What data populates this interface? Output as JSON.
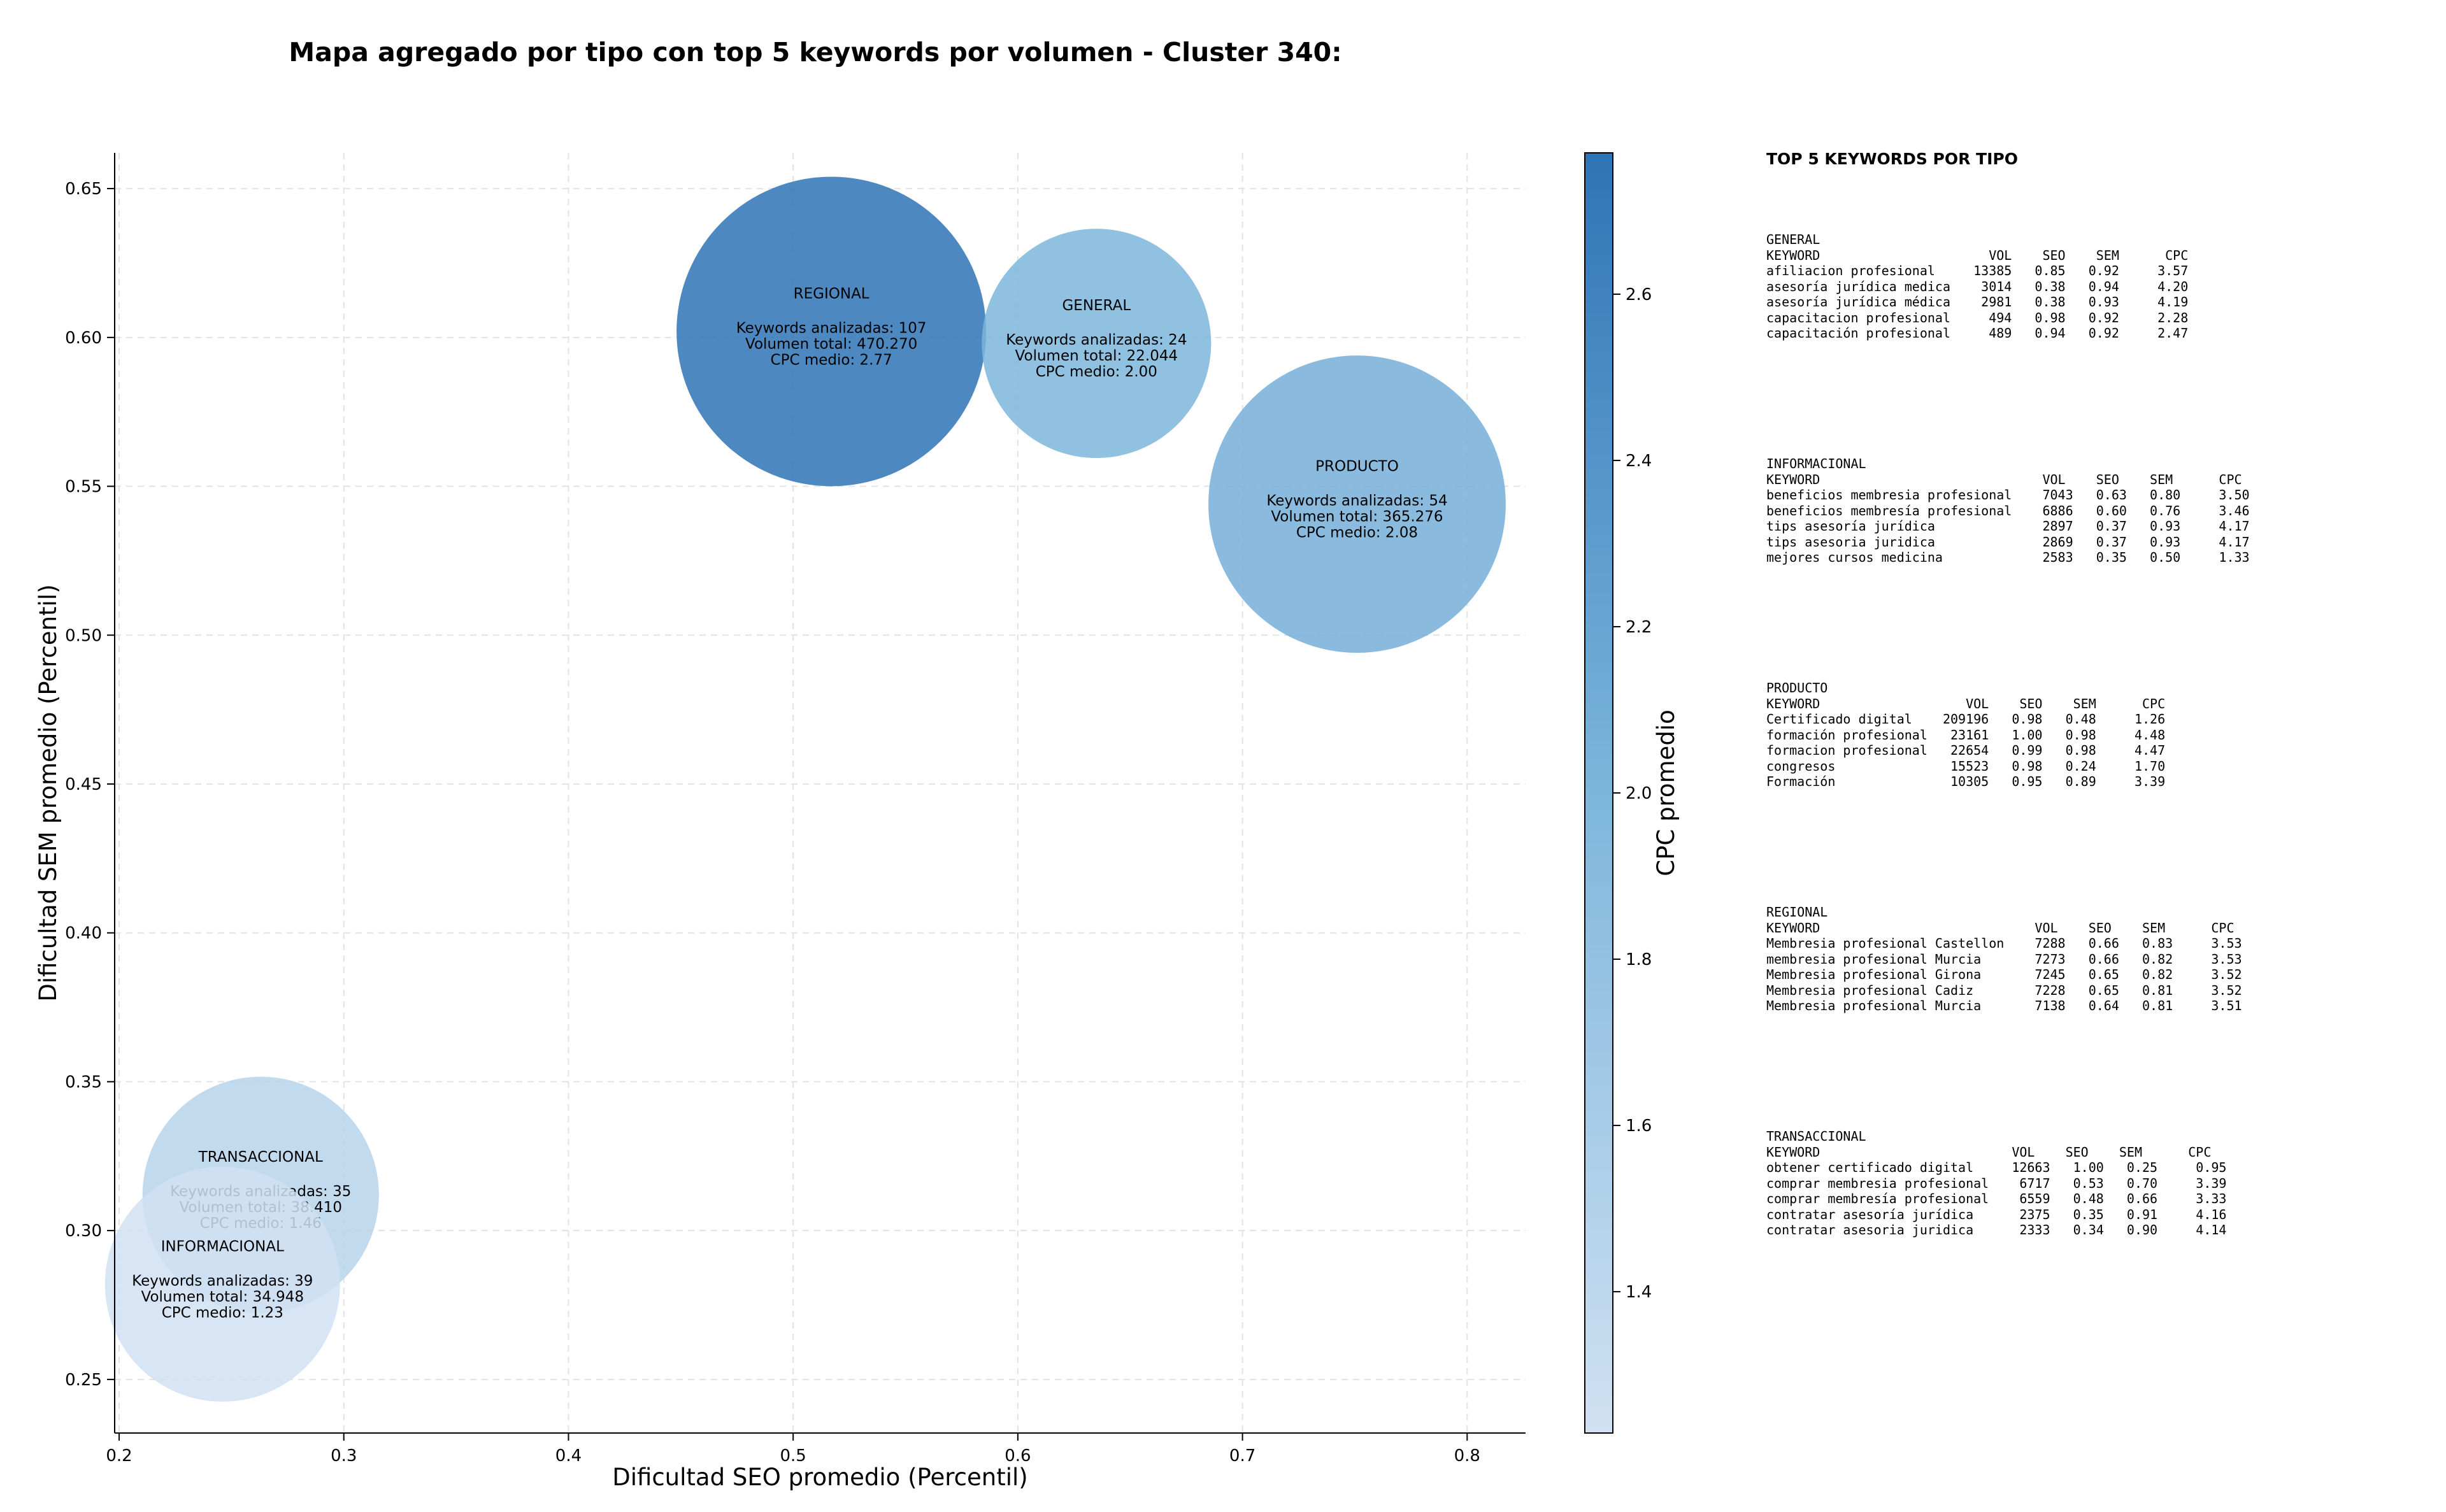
{
  "chart_data": {
    "type": "bubble",
    "title": "Mapa agregado por tipo con top 5 keywords por volumen - Cluster 340:",
    "xlabel": "Dificultad SEO promedio (Percentil)",
    "ylabel": "Dificultad SEM promedio (Percentil)",
    "xlim": [
      0.198,
      0.826
    ],
    "ylim": [
      0.232,
      0.662
    ],
    "xticks": [
      0.2,
      0.3,
      0.4,
      0.5,
      0.6,
      0.7,
      0.8
    ],
    "yticks": [
      0.25,
      0.3,
      0.35,
      0.4,
      0.45,
      0.5,
      0.55,
      0.6,
      0.65
    ],
    "grid": true,
    "colorbar": {
      "label": "CPC promedio",
      "min": 1.23,
      "max": 2.77,
      "ticks": [
        1.4,
        1.6,
        1.8,
        2.0,
        2.2,
        2.4,
        2.6
      ]
    },
    "points": [
      {
        "name": "REGIONAL",
        "x": 0.517,
        "y": 0.602,
        "keywords": "Keywords analizadas: 107",
        "volume": "Volumen total: 470.270",
        "cpc_text": "CPC medio: 2.77",
        "cpc": 2.77,
        "volume_value": 470270
      },
      {
        "name": "GENERAL",
        "x": 0.635,
        "y": 0.598,
        "keywords": "Keywords analizadas: 24",
        "volume": "Volumen total: 22.044",
        "cpc_text": "CPC medio: 2.00",
        "cpc": 2.0,
        "volume_value": 22044
      },
      {
        "name": "PRODUCTO",
        "x": 0.751,
        "y": 0.544,
        "keywords": "Keywords analizadas: 54",
        "volume": "Volumen total: 365.276",
        "cpc_text": "CPC medio: 2.08",
        "cpc": 2.08,
        "volume_value": 365276
      },
      {
        "name": "TRANSACCIONAL",
        "x": 0.263,
        "y": 0.312,
        "keywords": "Keywords analizadas: 35",
        "volume": "Volumen total: 38.410",
        "cpc_text": "CPC medio: 1.46",
        "cpc": 1.46,
        "volume_value": 38410
      },
      {
        "name": "INFORMACIONAL",
        "x": 0.246,
        "y": 0.282,
        "keywords": "Keywords analizadas: 39",
        "volume": "Volumen total: 34.948",
        "cpc_text": "CPC medio: 1.23",
        "cpc": 1.23,
        "volume_value": 34948
      }
    ]
  },
  "side_panel": {
    "title": "TOP 5 KEYWORDS POR TIPO",
    "blocks": [
      {
        "name": "GENERAL",
        "header": "KEYWORD                      VOL    SEO    SEM      CPC",
        "rows": [
          "afiliacion profesional     13385   0.85   0.92     3.57",
          "asesoría jurídica medica    3014   0.38   0.94     4.20",
          "asesoría jurídica médica    2981   0.38   0.93     4.19",
          "capacitacion profesional     494   0.98   0.92     2.28",
          "capacitación profesional     489   0.94   0.92     2.47"
        ]
      },
      {
        "name": "INFORMACIONAL",
        "header": "KEYWORD                             VOL    SEO    SEM      CPC",
        "rows": [
          "beneficios membresia profesional    7043   0.63   0.80     3.50",
          "beneficios membresía profesional    6886   0.60   0.76     3.46",
          "tips asesoría jurídica              2897   0.37   0.93     4.17",
          "tips asesoria juridica              2869   0.37   0.93     4.17",
          "mejores cursos medicina             2583   0.35   0.50     1.33"
        ]
      },
      {
        "name": "PRODUCTO",
        "header": "KEYWORD                   VOL    SEO    SEM      CPC",
        "rows": [
          "Certificado digital    209196   0.98   0.48     1.26",
          "formación profesional   23161   1.00   0.98     4.48",
          "formacion profesional   22654   0.99   0.98     4.47",
          "congresos               15523   0.98   0.24     1.70",
          "Formación               10305   0.95   0.89     3.39"
        ]
      },
      {
        "name": "REGIONAL",
        "header": "KEYWORD                            VOL    SEO    SEM      CPC",
        "rows": [
          "Membresia profesional Castellon    7288   0.66   0.83     3.53",
          "membresia profesional Murcia       7273   0.66   0.82     3.53",
          "Membresia profesional Girona       7245   0.65   0.82     3.52",
          "Membresia profesional Cadiz        7228   0.65   0.81     3.52",
          "Membresia profesional Murcia       7138   0.64   0.81     3.51"
        ]
      },
      {
        "name": "TRANSACCIONAL",
        "header": "KEYWORD                         VOL    SEO    SEM      CPC",
        "rows": [
          "obtener certificado digital     12663   1.00   0.25     0.95",
          "comprar membresia profesional    6717   0.53   0.70     3.39",
          "comprar membresía profesional    6559   0.48   0.66     3.33",
          "contratar asesoría jurídica      2375   0.35   0.91     4.16",
          "contratar asesoria juridica      2333   0.34   0.90     4.14"
        ]
      }
    ]
  },
  "colors": {
    "scale_low": "#d0e1f2",
    "scale_mid": "#6fadd6",
    "scale_high": "#2e74b5",
    "grid": "#e3e3e3",
    "text": "#000000"
  }
}
